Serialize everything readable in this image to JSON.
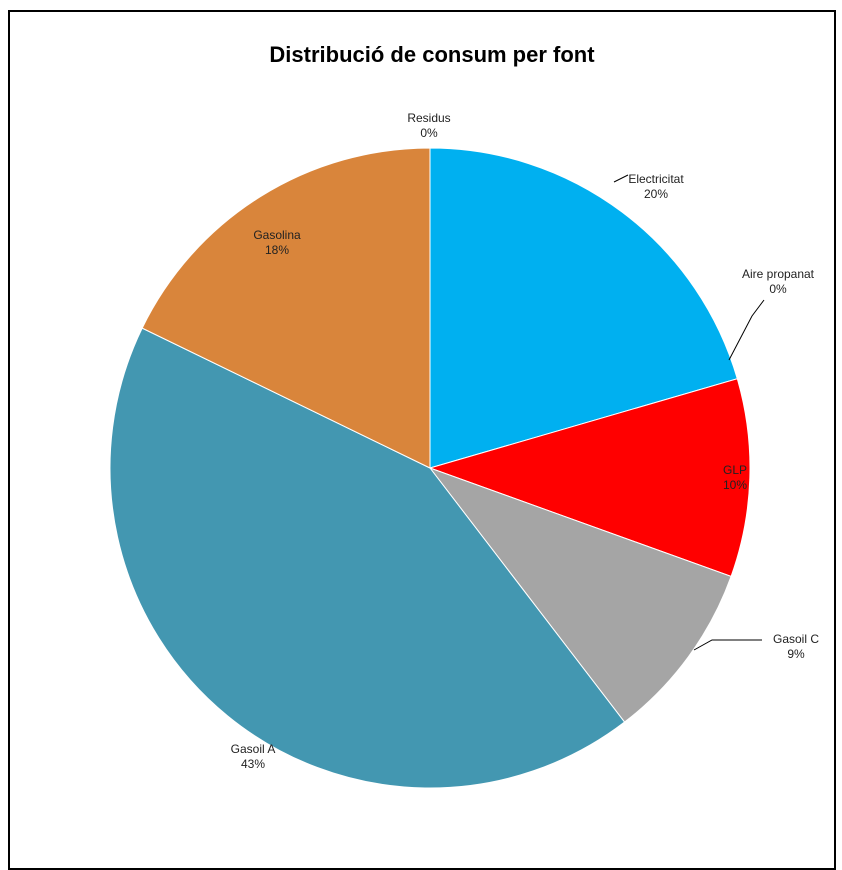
{
  "chart_data": {
    "type": "pie",
    "title": "Distribució de consum per font",
    "slices": [
      {
        "label": "Electricitat",
        "percent_label": "20%",
        "value": 20.5,
        "color": "#00b0f0"
      },
      {
        "label": "Aire propanat",
        "percent_label": "0%",
        "value": 0.0,
        "color": "#7030a0"
      },
      {
        "label": "GLP",
        "percent_label": "10%",
        "value": 10.0,
        "color": "#ff0000"
      },
      {
        "label": "Gasoil C",
        "percent_label": "9%",
        "value": 9.1,
        "color": "#a5a5a5"
      },
      {
        "label": "Gasoil A",
        "percent_label": "43%",
        "value": 42.6,
        "color": "#4397b1"
      },
      {
        "label": "Gasolina",
        "percent_label": "18%",
        "value": 17.8,
        "color": "#d9853b"
      },
      {
        "label": "Residus",
        "percent_label": "0%",
        "value": 0.0,
        "color": "#70ad47"
      }
    ],
    "start_angle_deg": 0,
    "direction": "clockwise",
    "legend": "none",
    "data_labels": "category name and percentage"
  }
}
